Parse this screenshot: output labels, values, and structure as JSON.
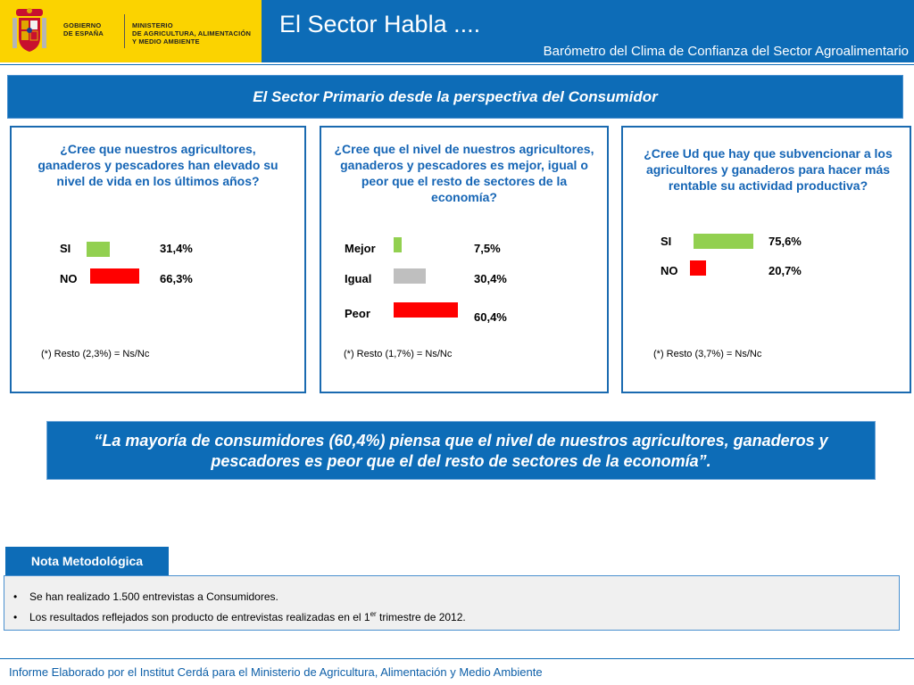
{
  "header": {
    "gov_line1": "GOBIERNO\nDE ESPAÑA",
    "gov_line2": "MINISTERIO\nDE AGRICULTURA, ALIMENTACIÓN\nY MEDIO AMBIENTE",
    "title": "El Sector Habla ....",
    "subtitle": "Barómetro del Clima de Confianza del Sector Agroalimentario",
    "brand_color": "#0d6cb7",
    "gov_color": "#fbd300"
  },
  "section": {
    "title": "El Sector Primario desde la perspectiva del Consumidor"
  },
  "chart_data": [
    {
      "type": "bar",
      "title": "¿Cree que nuestros agricultores, ganaderos y pescadores han elevado su nivel de vida en los últimos años?",
      "categories": [
        "SI",
        "NO"
      ],
      "values": [
        31.4,
        66.3
      ],
      "value_labels": [
        "31,4%",
        "66,3%"
      ],
      "colors": [
        "#92d050",
        "#ff0000"
      ],
      "note": "(*) Resto (2,3%) = Ns/Nc"
    },
    {
      "type": "bar",
      "title": "¿Cree que el nivel de nuestros agricultores, ganaderos y pescadores es mejor, igual o peor que el resto de sectores de la economía?",
      "categories": [
        "Mejor",
        "Igual",
        "Peor"
      ],
      "values": [
        7.5,
        30.4,
        60.4
      ],
      "value_labels": [
        "7,5%",
        "30,4%",
        "60,4%"
      ],
      "colors": [
        "#92d050",
        "#bfbfbf",
        "#ff0000"
      ],
      "note": "(*) Resto (1,7%) = Ns/Nc"
    },
    {
      "type": "bar",
      "title": "¿Cree Ud que hay que subvencionar a los agricultores y ganaderos para hacer más rentable su actividad productiva?",
      "categories": [
        "SI",
        "NO"
      ],
      "values": [
        75.6,
        20.7
      ],
      "value_labels": [
        "75,6%",
        "20,7%"
      ],
      "colors": [
        "#92d050",
        "#ff0000"
      ],
      "note": "(*) Resto (3,7%) = Ns/Nc"
    }
  ],
  "quote": "“La mayoría de consumidores (60,4%) piensa que el nivel de nuestros agricultores, ganaderos y pescadores es peor que el del resto de sectores de la economía”.",
  "nota": {
    "title": "Nota Metodológica",
    "bullet_1": "Se han realizado 1.500 entrevistas a Consumidores.",
    "bullet_2_pre": "Los resultados reflejados son producto de entrevistas realizadas en el 1",
    "bullet_2_sup": "er",
    "bullet_2_post": " trimestre de 2012."
  },
  "footer": "Informe Elaborado por el Institut Cerdá para el Ministerio de Agricultura, Alimentación y Medio Ambiente"
}
